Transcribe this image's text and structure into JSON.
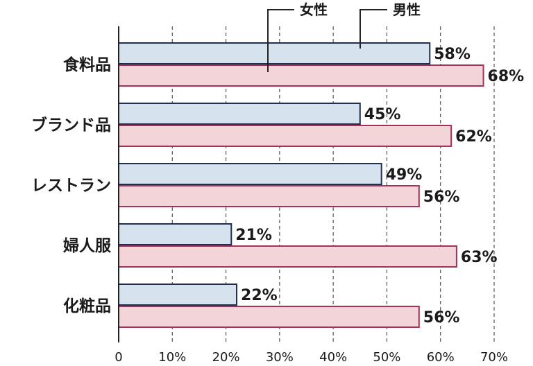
{
  "chart_data": {
    "type": "bar",
    "orientation": "horizontal",
    "categories": [
      "食料品",
      "ブランド品",
      "レストラン",
      "婦人服",
      "化粧品"
    ],
    "series": [
      {
        "name": "男性",
        "values": [
          58,
          45,
          49,
          21,
          22
        ],
        "value_labels": [
          "58%",
          "45%",
          "49%",
          "21%",
          "22%"
        ],
        "color": "#d6e2ee",
        "stroke": "#1f2f52"
      },
      {
        "name": "女性",
        "values": [
          68,
          62,
          56,
          63,
          56
        ],
        "value_labels": [
          "68%",
          "62%",
          "56%",
          "63%",
          "56%"
        ],
        "color": "#f2d4d9",
        "stroke": "#a23356"
      }
    ],
    "xlim": [
      0,
      70
    ],
    "xticks": [
      0,
      10,
      20,
      30,
      40,
      50,
      60,
      70
    ],
    "xtick_labels": [
      "0",
      "10%",
      "20%",
      "30%",
      "40%",
      "50%",
      "60%",
      "70%"
    ],
    "grid": "vertical dashed",
    "legend": "top"
  }
}
